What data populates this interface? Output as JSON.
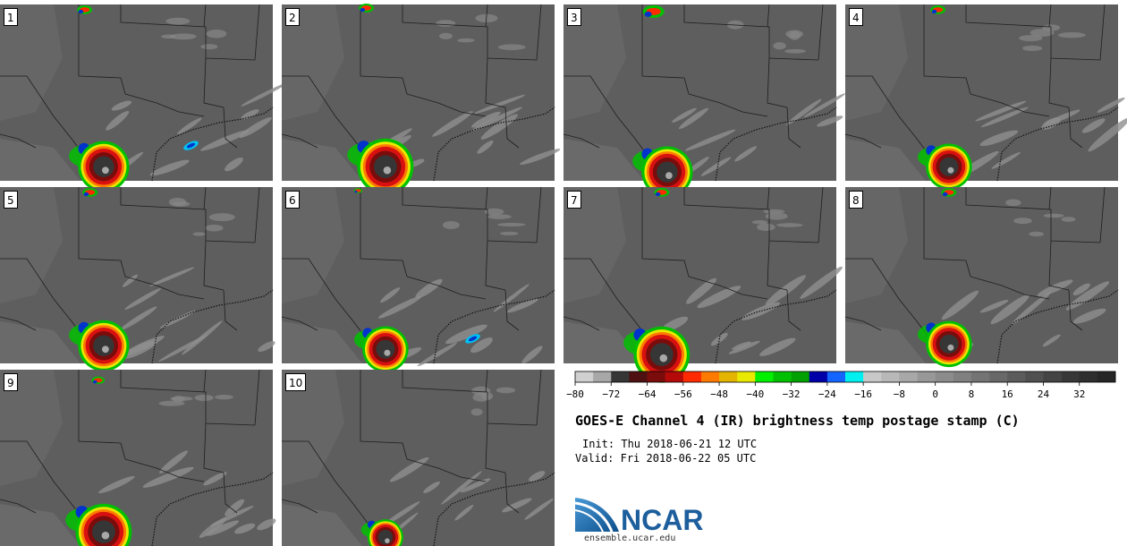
{
  "title": "GOES-E Channel 4 (IR) brightness temp postage stamp (C)",
  "init_label": "Init:",
  "init_time": "Thu 2018-06-21 12 UTC",
  "valid_label": "Valid:",
  "valid_time": "Fri 2018-06-22 05 UTC",
  "logo_text": "NCAR",
  "logo_url": "ensemble.ucar.edu",
  "colors": {
    "background_gray": "#5e5e5e",
    "border_line": "#1e1e1e",
    "accent_logo": "#1d6fb0"
  },
  "panels": [
    {
      "label": "1",
      "storm": [
        0.38,
        0.92,
        1.0
      ],
      "north": [
        0.31,
        0.03,
        0.7
      ],
      "bands": [
        [
          0.7,
          0.8,
          "blue"
        ]
      ]
    },
    {
      "label": "2",
      "storm": [
        0.38,
        0.92,
        1.1
      ],
      "north": [
        0.31,
        0.02,
        0.7
      ],
      "bands": []
    },
    {
      "label": "3",
      "storm": [
        0.38,
        0.95,
        1.0
      ],
      "north": [
        0.33,
        0.04,
        1.0
      ],
      "bands": []
    },
    {
      "label": "4",
      "storm": [
        0.38,
        0.92,
        0.9
      ],
      "north": [
        0.34,
        0.03,
        0.7
      ],
      "bands": []
    },
    {
      "label": "5",
      "storm": [
        0.38,
        0.9,
        1.0
      ],
      "north": [
        0.33,
        0.03,
        0.7
      ],
      "bands": []
    },
    {
      "label": "6",
      "storm": [
        0.38,
        0.92,
        0.9
      ],
      "north": [
        0.28,
        0.02,
        0.4
      ],
      "bands": [
        [
          0.7,
          0.86,
          "blue"
        ]
      ]
    },
    {
      "label": "7",
      "storm": [
        0.36,
        0.95,
        1.1
      ],
      "north": [
        0.36,
        0.03,
        0.7
      ],
      "bands": []
    },
    {
      "label": "8",
      "storm": [
        0.38,
        0.89,
        0.9
      ],
      "north": [
        0.38,
        0.03,
        0.7
      ],
      "bands": []
    },
    {
      "label": "9",
      "storm": [
        0.38,
        0.92,
        1.1
      ],
      "north": [
        0.36,
        0.06,
        0.6
      ],
      "bands": []
    },
    {
      "label": "10",
      "storm": [
        0.38,
        0.95,
        0.7
      ],
      "north": [
        0.3,
        0.02,
        0.0
      ],
      "bands": []
    }
  ],
  "colorbar": {
    "colors": [
      "#d0d0d0",
      "#a8a8a8",
      "#363636",
      "#4e1010",
      "#7a0c0c",
      "#b40a0a",
      "#ff2a00",
      "#ff7a00",
      "#e3b400",
      "#e8e800",
      "#00f000",
      "#00c000",
      "#00a000",
      "#0000a8",
      "#1464ff",
      "#00f0f0",
      "#c8c8c8",
      "#b8b8b8",
      "#a8a8a8",
      "#989898",
      "#8c8c8c",
      "#808080",
      "#747474",
      "#686868",
      "#5c5c5c",
      "#505050",
      "#444444",
      "#383838",
      "#2e2e2e",
      "#262626"
    ],
    "ticks": [
      "−80",
      "−72",
      "−64",
      "−56",
      "−48",
      "−40",
      "−32",
      "−24",
      "−16",
      "−8",
      "0",
      "8",
      "16",
      "24",
      "32"
    ],
    "min": -80,
    "max": 40
  }
}
